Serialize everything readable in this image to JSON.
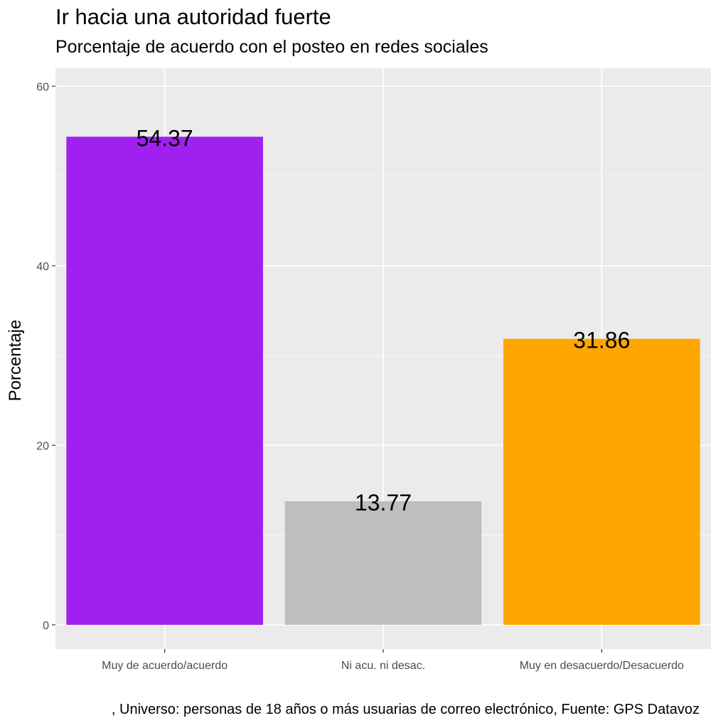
{
  "chart_data": {
    "type": "bar",
    "title": "Ir hacia una autoridad fuerte",
    "subtitle": "Porcentaje de acuerdo con el posteo en redes sociales",
    "caption": ", Universo: personas de 18 años o más usuarias de correo electrónico, Fuente: GPS Datavoz",
    "xlabel": "",
    "ylabel": "Porcentaje",
    "categories": [
      "Muy de acuerdo/acuerdo",
      "Ni acu. ni desac.",
      "Muy en desacuerdo/Desacuerdo"
    ],
    "values": [
      54.37,
      13.77,
      31.86
    ],
    "data_labels": [
      "54.37",
      "13.77",
      "31.86"
    ],
    "colors": [
      "#A020F0",
      "#BEBEBE",
      "#FFA500"
    ],
    "ylim": [
      -2.7,
      62
    ],
    "yticks": [
      0,
      20,
      40,
      60
    ],
    "grid": true,
    "panel_background": "#EBEBEB",
    "legend": "none"
  }
}
